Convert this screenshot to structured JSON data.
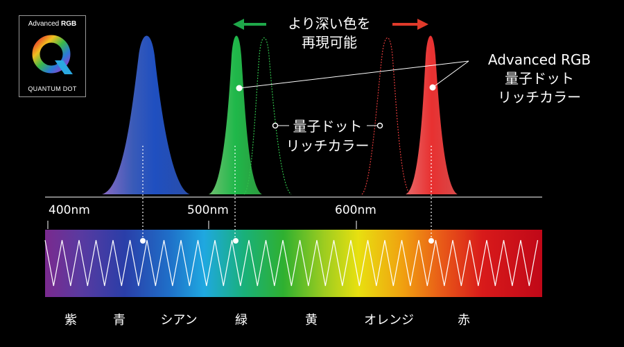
{
  "logo": {
    "brand_prefix": "Advanced",
    "brand_suffix": "RGB",
    "tagline": "QUANTUM DOT"
  },
  "annotations": {
    "deeper_colors_line1": "より深い色を",
    "deeper_colors_line2": "再現可能",
    "advanced_line1": "Advanced RGB",
    "advanced_line2": "量子ドット",
    "advanced_line3": "リッチカラー",
    "qd_line1": "量子ドット",
    "qd_line2": "リッチカラー"
  },
  "wavelength_ticks": [
    "400nm",
    "500nm",
    "600nm"
  ],
  "color_names": [
    "紫",
    "青",
    "シアン",
    "緑",
    "黄",
    "オレンジ",
    "赤"
  ],
  "colors": {
    "blue_peak": "#1f4fc0",
    "green_peak": "#1fb84a",
    "red_peak": "#e83a3a",
    "arrow_green": "#1fa84a",
    "arrow_red": "#e03a2a"
  }
}
